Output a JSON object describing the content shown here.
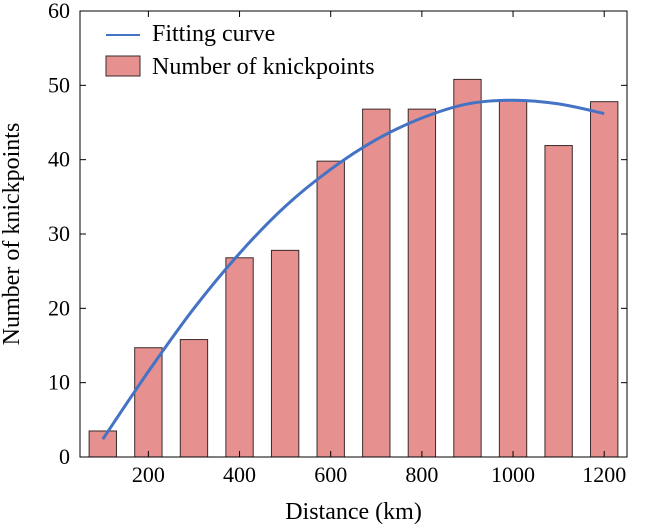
{
  "chart_data": {
    "type": "bar",
    "xlabel": "Distance (km)",
    "ylabel": "Number of knickpoints",
    "xlim": [
      50,
      1250
    ],
    "ylim": [
      0,
      60
    ],
    "xticks": [
      200,
      400,
      600,
      800,
      1000,
      1200
    ],
    "yticks": [
      0,
      10,
      20,
      30,
      40,
      50,
      60
    ],
    "grid": false,
    "legend_position": "top-left",
    "bar_width": 60,
    "bar_color": "#e6918f",
    "bar_edge_color": "#3a2a2a",
    "line_color": "#4472c4",
    "series": [
      {
        "name": "Number of knickpoints",
        "type": "bar",
        "x": [
          100,
          200,
          300,
          400,
          500,
          600,
          700,
          800,
          900,
          1000,
          1100,
          1200
        ],
        "values": [
          3.5,
          14.7,
          15.8,
          26.8,
          27.8,
          39.8,
          46.8,
          46.8,
          50.8,
          48.0,
          41.9,
          47.8
        ]
      },
      {
        "name": "Fitting curve",
        "type": "line",
        "x": [
          100,
          200,
          300,
          400,
          500,
          600,
          700,
          800,
          900,
          1000,
          1100,
          1200
        ],
        "values": [
          2.4,
          11.5,
          20.0,
          27.4,
          33.7,
          38.7,
          42.7,
          45.6,
          47.5,
          48.0,
          47.5,
          46.2
        ]
      }
    ]
  }
}
